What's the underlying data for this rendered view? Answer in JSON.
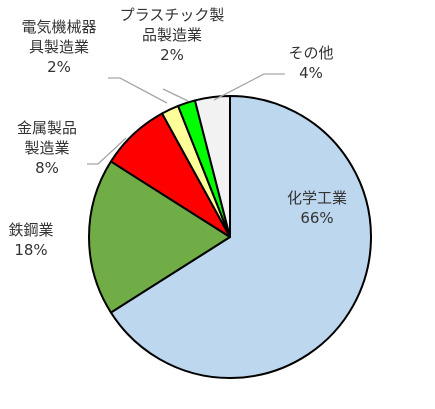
{
  "chart_data": {
    "type": "pie",
    "title": "",
    "slices": [
      {
        "label": "化学工業",
        "lines": [
          "化学工業"
        ],
        "percent_label": "66%",
        "value": 66,
        "color": "#bdd7ee"
      },
      {
        "label": "鉄鋼業",
        "lines": [
          "鉄鋼業"
        ],
        "percent_label": "18%",
        "value": 18,
        "color": "#70ad47"
      },
      {
        "label": "金属製品製造業",
        "lines": [
          "金属製品",
          "製造業"
        ],
        "percent_label": "8%",
        "value": 8,
        "color": "#ff0000"
      },
      {
        "label": "電気機械器具製造業",
        "lines": [
          "電気機械器",
          "具製造業"
        ],
        "percent_label": "2%",
        "value": 2,
        "color": "#ffff99"
      },
      {
        "label": "プラスチック製品製造業",
        "lines": [
          "プラスチック製",
          "品製造業"
        ],
        "percent_label": "2%",
        "value": 2,
        "color": "#00ff00"
      },
      {
        "label": "その他",
        "lines": [
          "その他"
        ],
        "percent_label": "4%",
        "value": 4,
        "color": "#f2f2f2"
      }
    ],
    "start_angle_deg": 0,
    "direction": "clockwise",
    "legend": "none"
  }
}
